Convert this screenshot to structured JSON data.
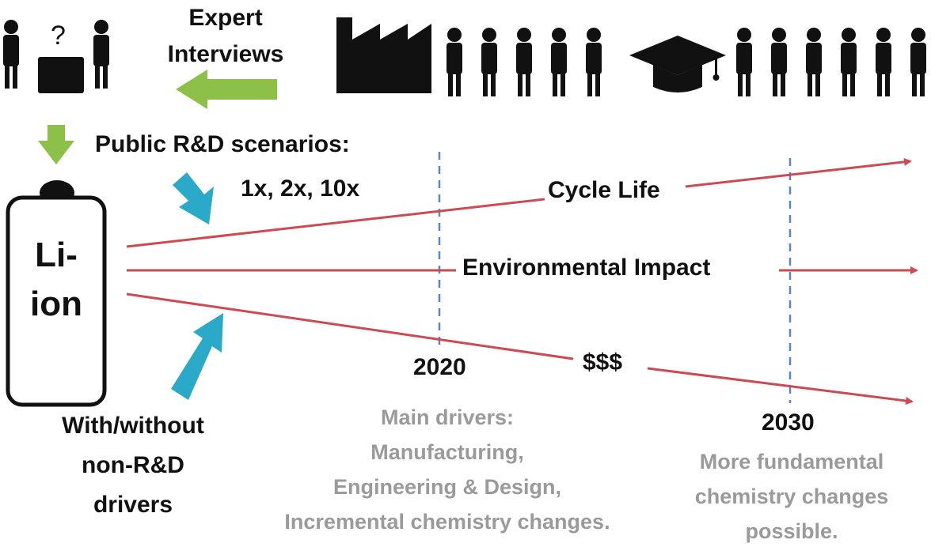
{
  "expert_interviews": {
    "line1": "Expert",
    "line2": "Interviews"
  },
  "question_mark": "?",
  "public_rd": {
    "title": "Public R&D scenarios:",
    "values": "1x, 2x, 10x"
  },
  "battery": {
    "line1": "Li-",
    "line2": "ion"
  },
  "non_rd": {
    "line1": "With/without",
    "line2": "non-R&D",
    "line3": "drivers"
  },
  "trends": {
    "cycle_life": "Cycle Life",
    "environmental": "Environmental Impact",
    "cost": "$$$"
  },
  "milestones": {
    "y2020": {
      "year": "2020",
      "line1": "Main drivers:",
      "line2": "Manufacturing,",
      "line3": "Engineering & Design,",
      "line4": "Incremental chemistry changes."
    },
    "y2030": {
      "year": "2030",
      "line1": "More fundamental",
      "line2": "chemistry changes",
      "line3": "possible."
    }
  },
  "colors": {
    "green_arrow": "#8dc048",
    "blue_arrow": "#2ba9c8",
    "red_line": "#cc4a52",
    "dashed": "#5b86c5",
    "icons": "#111111",
    "grey_text": "#9a9a9a"
  }
}
